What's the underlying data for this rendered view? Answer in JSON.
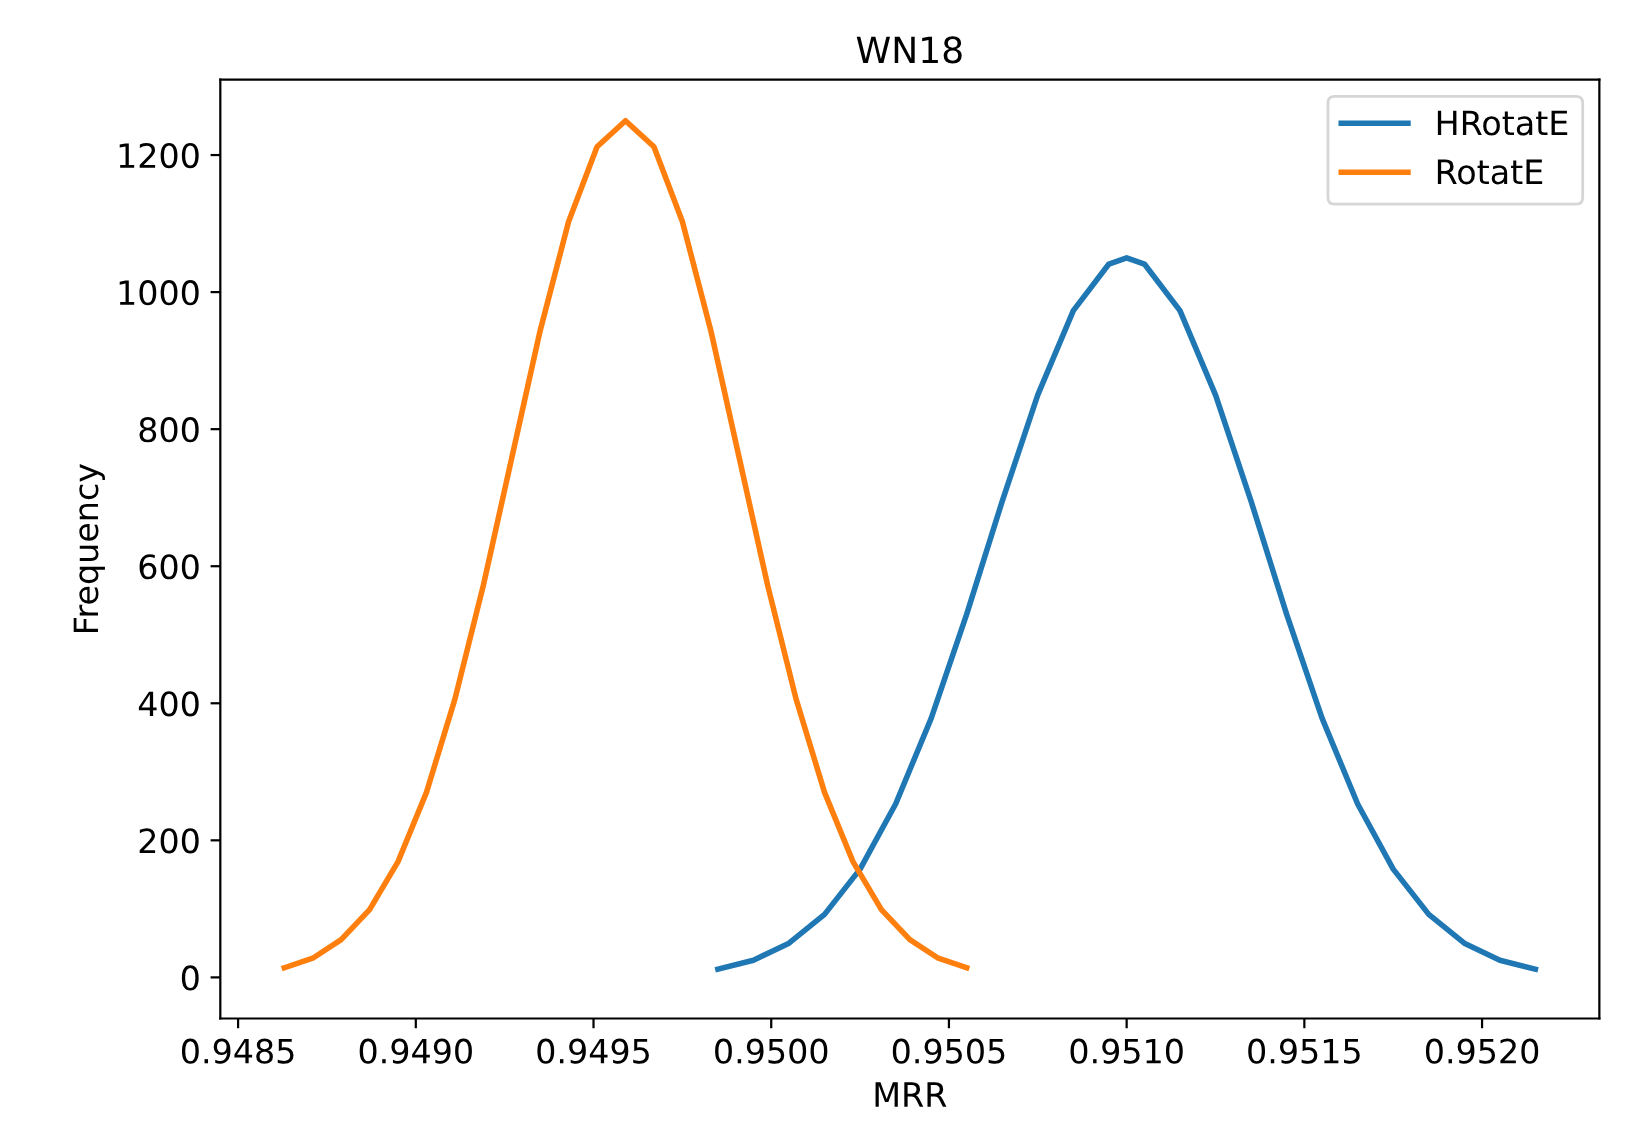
{
  "chart_data": {
    "type": "line",
    "title": "WN18",
    "xlabel": "MRR",
    "ylabel": "Frequency",
    "series": [
      {
        "name": "HRotatE",
        "color": "#1f77b4",
        "x": [
          0.94985,
          0.94995,
          0.95005,
          0.95015,
          0.95025,
          0.95035,
          0.95045,
          0.95055,
          0.95065,
          0.95075,
          0.95085,
          0.95095,
          0.951,
          0.95105,
          0.95115,
          0.95125,
          0.95135,
          0.95145,
          0.95155,
          0.95165,
          0.95175,
          0.95185,
          0.95195,
          0.95205,
          0.95215
        ],
        "values": [
          12,
          25,
          50,
          92,
          158,
          253,
          378,
          530,
          695,
          850,
          973,
          1041,
          1050,
          1041,
          973,
          850,
          695,
          530,
          378,
          253,
          158,
          92,
          50,
          25,
          12
        ]
      },
      {
        "name": "RotatE",
        "color": "#ff7f0e",
        "x": [
          0.94863,
          0.94871,
          0.94879,
          0.94887,
          0.94895,
          0.94903,
          0.94911,
          0.94919,
          0.94927,
          0.94935,
          0.94943,
          0.94951,
          0.94959,
          0.94967,
          0.94975,
          0.94983,
          0.94991,
          0.94999,
          0.95007,
          0.95015,
          0.95023,
          0.95031,
          0.95039,
          0.95047,
          0.95055
        ],
        "values": [
          14,
          28,
          55,
          99,
          169,
          270,
          406,
          572,
          758,
          944,
          1103,
          1212,
          1250,
          1212,
          1103,
          944,
          758,
          572,
          406,
          270,
          169,
          99,
          55,
          28,
          14
        ]
      }
    ],
    "xlim": [
      0.94845,
      0.95233
    ],
    "ylim": [
      -60,
      1310
    ],
    "xticks": [
      0.9485,
      {
        "value": 0.949,
        "label": "0.9490"
      },
      0.9495,
      {
        "value": 0.95,
        "label": "0.9500"
      },
      0.9505,
      {
        "value": 0.951,
        "label": "0.9510"
      },
      0.9515,
      {
        "value": 0.952,
        "label": "0.9520"
      }
    ],
    "yticks": [
      0,
      200,
      400,
      600,
      800,
      1000,
      1200
    ],
    "legend": "top right",
    "grid": false,
    "marker": "none",
    "line_style": "solid"
  }
}
